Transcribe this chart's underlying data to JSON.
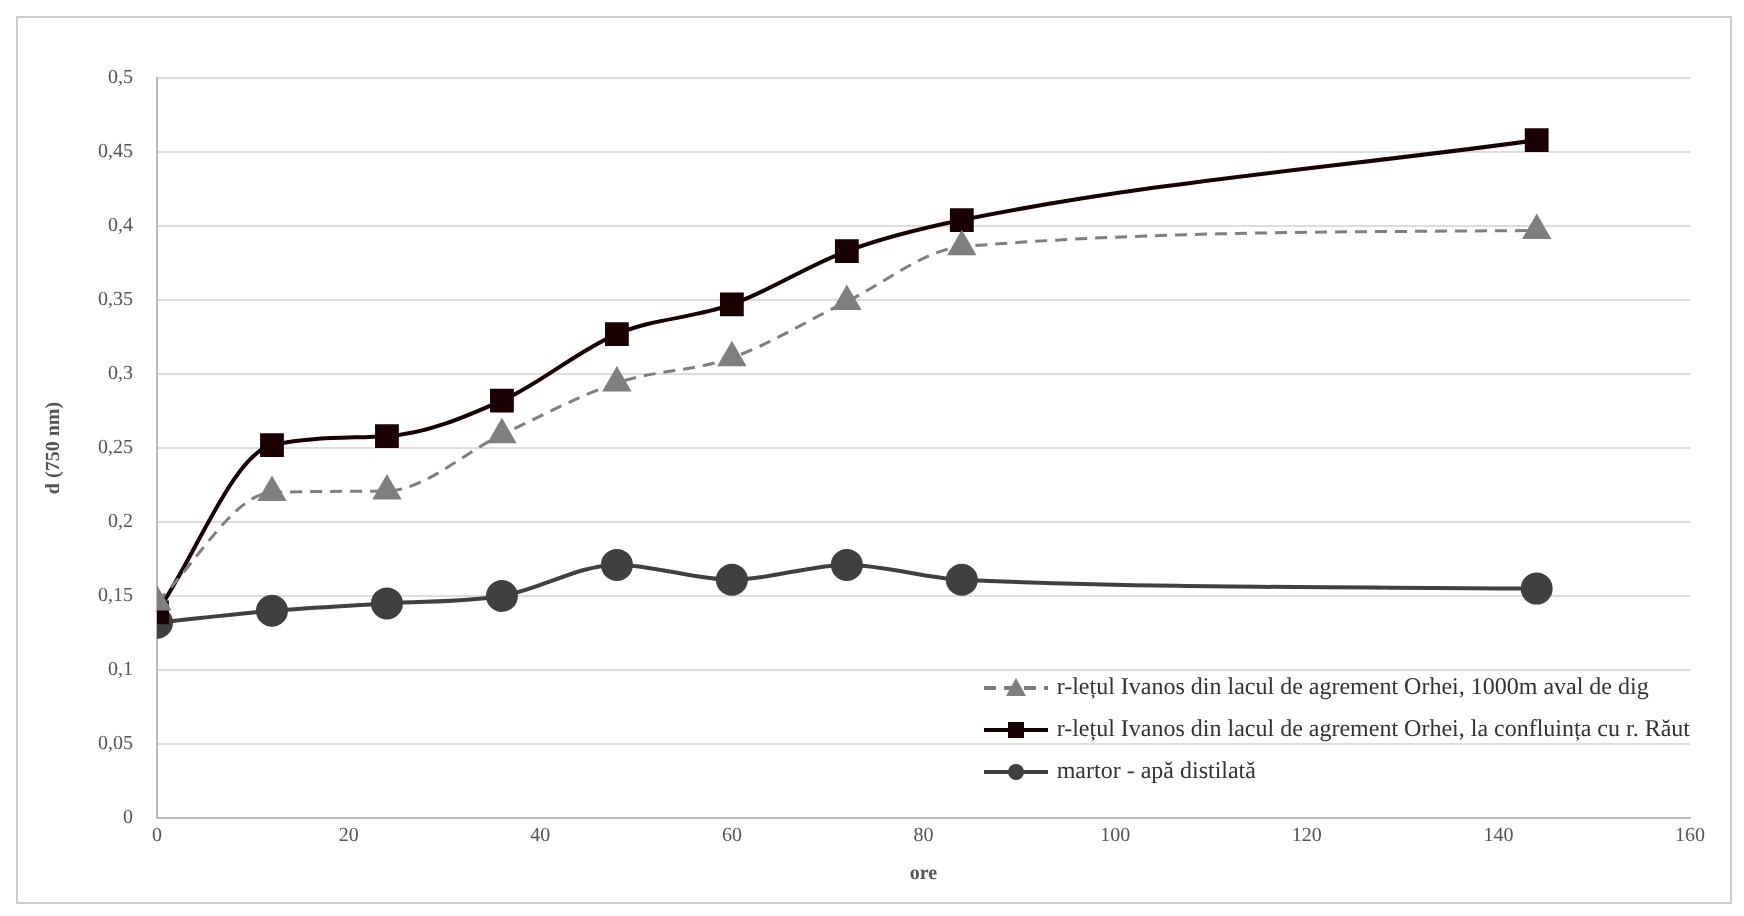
{
  "chart_data": {
    "type": "line",
    "xlabel": "ore",
    "ylabel": "d (750 nm)",
    "x": [
      0,
      12,
      24,
      36,
      48,
      60,
      72,
      84,
      144
    ],
    "series": [
      {
        "name": "r-lețul Ivanos din lacul de agrement Orhei, 1000m aval de dig",
        "color": "#7f7f7f",
        "marker": "triangle",
        "line_style": "dashed",
        "values": [
          0.146,
          0.22,
          0.221,
          0.259,
          0.294,
          0.311,
          0.349,
          0.386,
          0.397
        ]
      },
      {
        "name": "r-lețul Ivanos din lacul de agrement Orhei, la confluința cu r. Răut",
        "color": "#1a0000",
        "marker": "square",
        "line_style": "solid",
        "values": [
          0.139,
          0.252,
          0.258,
          0.282,
          0.327,
          0.347,
          0.383,
          0.404,
          0.458
        ]
      },
      {
        "name": "martor - apă distilată",
        "color": "#404040",
        "marker": "circle",
        "line_style": "solid",
        "values": [
          0.132,
          0.14,
          0.145,
          0.15,
          0.171,
          0.161,
          0.171,
          0.161,
          0.155
        ]
      }
    ],
    "xlim": [
      0,
      160
    ],
    "xticks": [
      0,
      20,
      40,
      60,
      80,
      100,
      120,
      140,
      160
    ],
    "ylim": [
      0,
      0.5
    ],
    "yticks": [
      0,
      {
        "value": 0.05,
        "label": "0,05"
      },
      {
        "value": 0.1,
        "label": "0,1"
      },
      {
        "value": 0.15,
        "label": "0,15"
      },
      {
        "value": 0.2,
        "label": "0,2"
      },
      {
        "value": 0.25,
        "label": "0,25"
      },
      {
        "value": 0.3,
        "label": "0,3"
      },
      {
        "value": 0.35,
        "label": "0,35"
      },
      {
        "value": 0.4,
        "label": "0,4"
      },
      {
        "value": 0.45,
        "label": "0,45"
      },
      {
        "value": 0.5,
        "label": "0,5"
      }
    ],
    "grid": "y",
    "legend": "bottom right"
  }
}
